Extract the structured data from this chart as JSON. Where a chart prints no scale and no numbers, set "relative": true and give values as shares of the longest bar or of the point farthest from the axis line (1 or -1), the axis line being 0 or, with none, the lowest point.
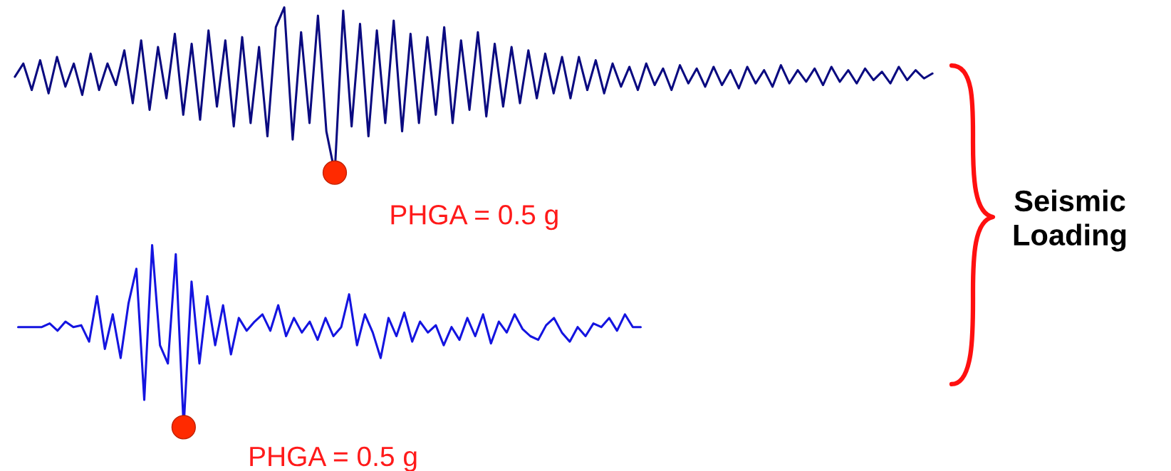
{
  "chart_data": [
    {
      "type": "line",
      "relative": true,
      "categories": [
        null,
        null,
        null,
        null,
        null,
        null,
        null,
        null,
        null,
        null,
        null,
        null,
        null,
        null,
        null,
        null,
        null,
        null,
        null,
        null,
        null,
        null,
        null,
        null,
        null,
        null,
        null,
        null,
        null,
        null,
        null,
        null,
        null,
        null,
        null,
        null,
        null,
        null,
        null,
        null,
        null,
        null,
        null,
        null,
        null,
        null,
        null,
        null,
        null,
        null,
        null,
        null,
        null,
        null,
        null,
        null,
        null,
        null,
        null,
        null,
        null,
        null,
        null,
        null,
        null,
        null,
        null,
        null,
        null,
        null,
        null,
        null,
        null,
        null,
        null,
        null,
        null,
        null,
        null,
        null,
        null,
        null,
        null,
        null,
        null,
        null,
        null,
        null,
        null,
        null,
        null,
        null,
        null,
        null,
        null,
        null,
        null,
        null,
        null,
        null,
        null,
        null,
        null,
        null,
        null,
        null,
        null,
        null,
        null,
        null
      ],
      "series": [
        {
          "type": "line",
          "color": "#0a0a80",
          "values": [
            0.58,
            0.66,
            0.5,
            0.68,
            0.48,
            0.7,
            0.52,
            0.66,
            0.47,
            0.72,
            0.5,
            0.66,
            0.53,
            0.74,
            0.42,
            0.8,
            0.38,
            0.76,
            0.45,
            0.84,
            0.35,
            0.78,
            0.32,
            0.86,
            0.4,
            0.8,
            0.28,
            0.82,
            0.3,
            0.76,
            0.22,
            0.88,
            1.0,
            0.2,
            0.85,
            0.3,
            0.95,
            0.25,
            0.0,
            0.98,
            0.28,
            0.9,
            0.22,
            0.86,
            0.3,
            0.92,
            0.25,
            0.84,
            0.3,
            0.82,
            0.35,
            0.88,
            0.3,
            0.8,
            0.38,
            0.85,
            0.34,
            0.78,
            0.4,
            0.76,
            0.42,
            0.74,
            0.45,
            0.72,
            0.48,
            0.7,
            0.45,
            0.7,
            0.5,
            0.68,
            0.48,
            0.66,
            0.52,
            0.64,
            0.5,
            0.66,
            0.53,
            0.63,
            0.5,
            0.65,
            0.54,
            0.63,
            0.52,
            0.64,
            0.53,
            0.62,
            0.51,
            0.64,
            0.54,
            0.62,
            0.52,
            0.65,
            0.54,
            0.62,
            0.55,
            0.63,
            0.53,
            0.64,
            0.55,
            0.62,
            0.54,
            0.63,
            0.56,
            0.61,
            0.54,
            0.64,
            0.56,
            0.62,
            0.57,
            0.6
          ]
        }
      ],
      "annotations": [
        "PHGA = 0.5 g"
      ]
    },
    {
      "type": "line",
      "relative": true,
      "categories": [
        null,
        null,
        null,
        null,
        null,
        null,
        null,
        null,
        null,
        null,
        null,
        null,
        null,
        null,
        null,
        null,
        null,
        null,
        null,
        null,
        null,
        null,
        null,
        null,
        null,
        null,
        null,
        null,
        null,
        null,
        null,
        null,
        null,
        null,
        null,
        null,
        null,
        null,
        null,
        null,
        null,
        null,
        null,
        null,
        null,
        null,
        null,
        null,
        null,
        null,
        null,
        null,
        null,
        null,
        null,
        null,
        null,
        null,
        null,
        null,
        null,
        null,
        null,
        null,
        null,
        null,
        null,
        null,
        null,
        null,
        null,
        null,
        null,
        null,
        null,
        null,
        null,
        null,
        null,
        null
      ],
      "series": [
        {
          "type": "line",
          "color": "#1414e0",
          "values": [
            0.55,
            0.55,
            0.55,
            0.55,
            0.57,
            0.53,
            0.58,
            0.55,
            0.56,
            0.47,
            0.72,
            0.43,
            0.62,
            0.38,
            0.68,
            0.87,
            0.15,
            1.0,
            0.45,
            0.35,
            0.95,
            0.0,
            0.8,
            0.35,
            0.72,
            0.45,
            0.67,
            0.4,
            0.6,
            0.53,
            0.58,
            0.62,
            0.53,
            0.67,
            0.5,
            0.6,
            0.52,
            0.58,
            0.48,
            0.6,
            0.5,
            0.55,
            0.73,
            0.45,
            0.62,
            0.52,
            0.38,
            0.6,
            0.5,
            0.63,
            0.47,
            0.58,
            0.52,
            0.56,
            0.45,
            0.55,
            0.48,
            0.6,
            0.5,
            0.62,
            0.46,
            0.58,
            0.52,
            0.62,
            0.54,
            0.5,
            0.48,
            0.56,
            0.6,
            0.52,
            0.47,
            0.55,
            0.5,
            0.57,
            0.55,
            0.6,
            0.53,
            0.62,
            0.55,
            0.55
          ]
        }
      ],
      "annotations": [
        "PHGA = 0.5 g"
      ]
    },
    {
      "type": "other",
      "annotations": [
        "Seismic\nLoading"
      ]
    }
  ]
}
